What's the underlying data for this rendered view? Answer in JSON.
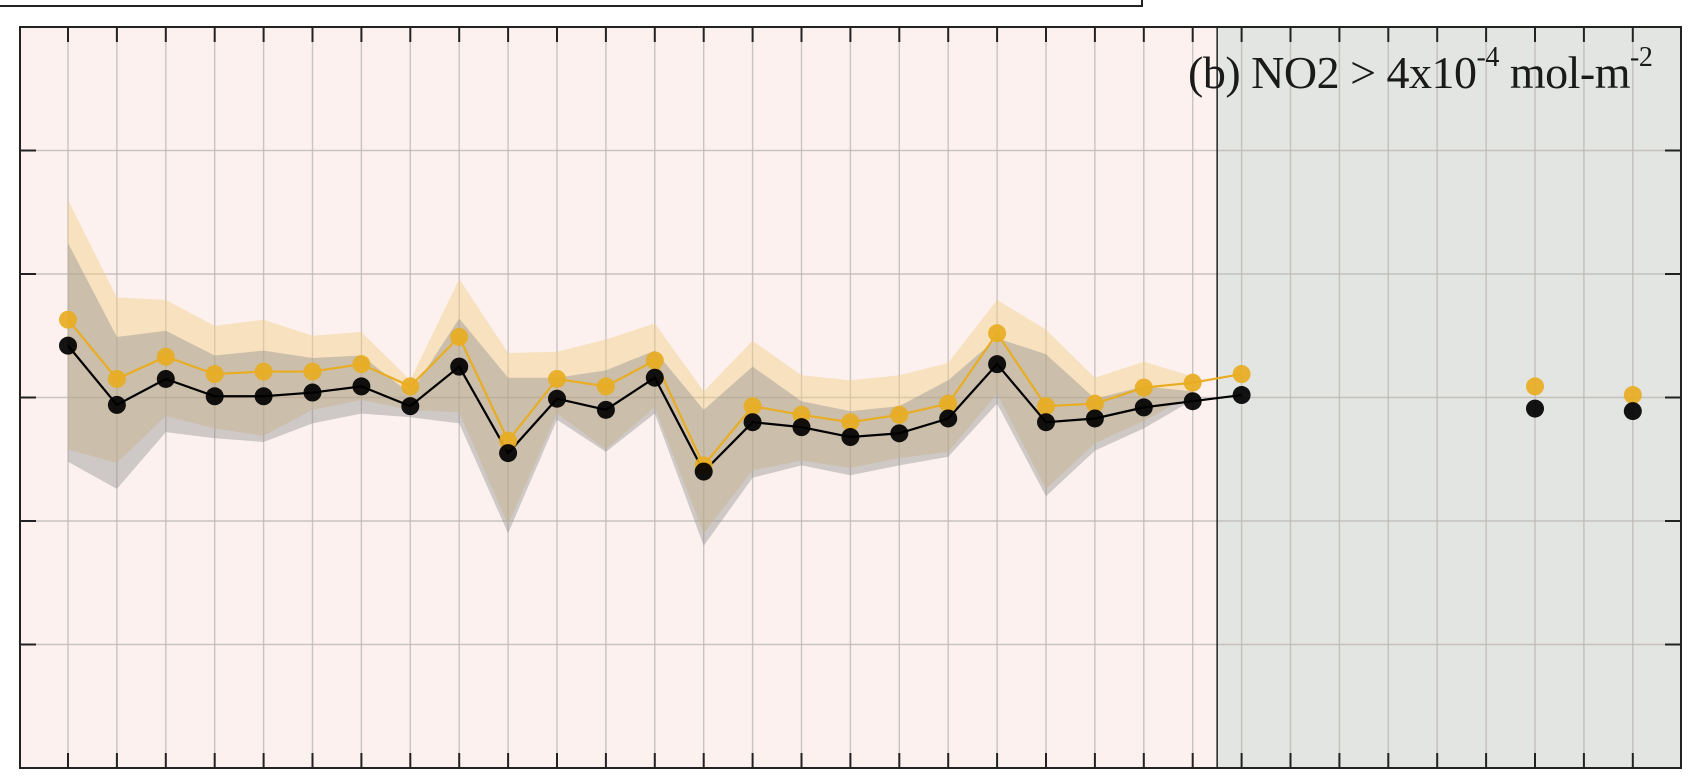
{
  "chart_data": {
    "type": "line",
    "title": "",
    "panel_label": {
      "prefix": "(b) NO2 > 4x10",
      "exp1": "-4",
      "mid": " mol-m",
      "exp2": "-2"
    },
    "xlabel": "",
    "ylabel": "",
    "x": [
      1,
      2,
      3,
      4,
      5,
      6,
      7,
      8,
      9,
      10,
      11,
      12,
      13,
      14,
      15,
      16,
      17,
      18,
      19,
      20,
      21,
      22,
      23,
      24,
      25,
      26,
      27,
      28,
      29,
      30,
      31,
      32,
      33
    ],
    "xlim": [
      0,
      34
    ],
    "ylim": [
      -3,
      3
    ],
    "grid": true,
    "regions": [
      {
        "from": 0,
        "to": 24.5,
        "color": "#fcf1ee"
      },
      {
        "from": 24.5,
        "to": 34,
        "color": "#e2e5e1"
      }
    ],
    "series": [
      {
        "color": "#e8ad22",
        "band_color": "#f2cf86",
        "band_opacity": 0.45,
        "values": [
          0.63,
          0.15,
          0.33,
          0.19,
          0.21,
          0.21,
          0.27,
          0.09,
          0.49,
          -0.35,
          0.15,
          0.09,
          0.3,
          -0.55,
          -0.07,
          -0.14,
          -0.2,
          -0.14,
          -0.05,
          0.52,
          -0.07,
          -0.05,
          0.08,
          0.12,
          0.19,
          null,
          null,
          null,
          null,
          null,
          0.09,
          null,
          0.02
        ],
        "upper": [
          1.6,
          0.81,
          0.79,
          0.58,
          0.63,
          0.5,
          0.53,
          0.14,
          0.96,
          0.36,
          0.37,
          0.47,
          0.6,
          0.05,
          0.46,
          0.18,
          0.14,
          0.18,
          0.28,
          0.79,
          0.55,
          0.16,
          0.29,
          0.17,
          null,
          null,
          null,
          null,
          null,
          null,
          null,
          null,
          null
        ],
        "lower": [
          -0.42,
          -0.53,
          -0.15,
          -0.25,
          -0.31,
          -0.1,
          -0.02,
          -0.1,
          -0.12,
          -1.03,
          -0.13,
          -0.42,
          -0.08,
          -1.1,
          -0.59,
          -0.51,
          -0.57,
          -0.49,
          -0.44,
          0.03,
          -0.74,
          -0.37,
          -0.19,
          0.03,
          null,
          null,
          null,
          null,
          null,
          null,
          null,
          null,
          null
        ]
      },
      {
        "color": "#000000",
        "band_color": "#8f8f8f",
        "band_opacity": 0.42,
        "values": [
          0.42,
          -0.06,
          0.15,
          0.01,
          0.01,
          0.04,
          0.09,
          -0.07,
          0.25,
          -0.45,
          -0.01,
          -0.1,
          0.16,
          -0.6,
          -0.2,
          -0.24,
          -0.32,
          -0.29,
          -0.17,
          0.27,
          -0.2,
          -0.17,
          -0.08,
          -0.03,
          0.02,
          null,
          null,
          null,
          null,
          null,
          -0.09,
          null,
          -0.11
        ],
        "upper": [
          1.25,
          0.49,
          0.54,
          0.34,
          0.38,
          0.32,
          0.34,
          0.03,
          0.64,
          0.16,
          0.16,
          0.22,
          0.38,
          -0.1,
          0.25,
          -0.03,
          -0.11,
          -0.07,
          0.14,
          0.48,
          0.35,
          -0.01,
          0.09,
          0.05,
          null,
          null,
          null,
          null,
          null,
          null,
          null,
          null,
          null
        ],
        "lower": [
          -0.52,
          -0.74,
          -0.28,
          -0.33,
          -0.36,
          -0.21,
          -0.13,
          -0.16,
          -0.21,
          -1.1,
          -0.18,
          -0.44,
          -0.13,
          -1.2,
          -0.65,
          -0.55,
          -0.63,
          -0.55,
          -0.48,
          -0.05,
          -0.8,
          -0.43,
          -0.25,
          -0.02,
          null,
          null,
          null,
          null,
          null,
          null,
          null,
          null,
          null
        ]
      }
    ]
  }
}
